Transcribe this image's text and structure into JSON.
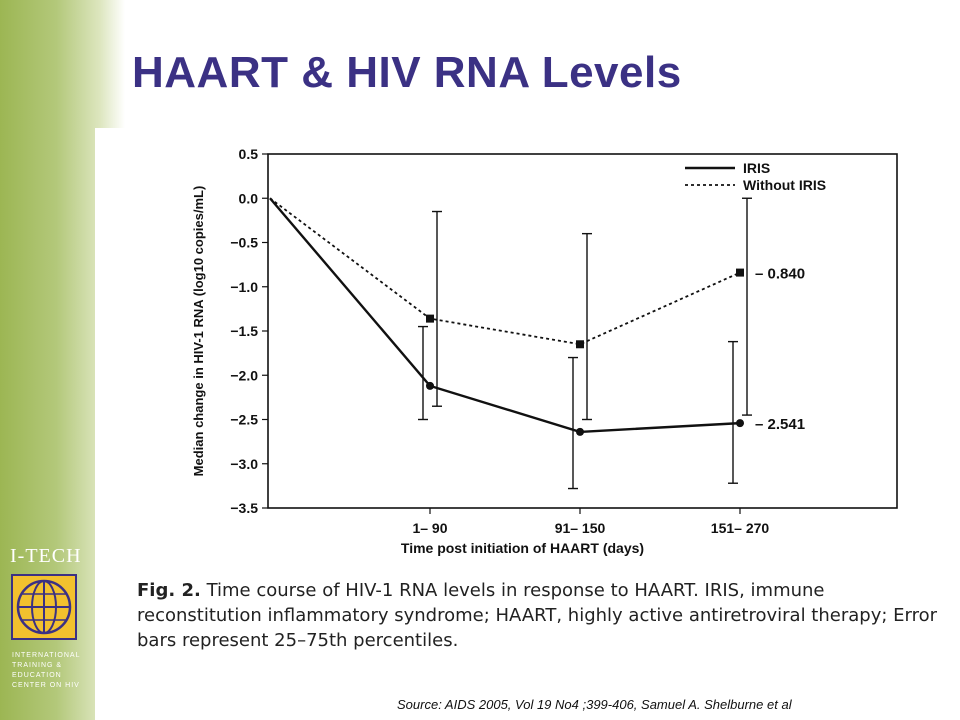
{
  "slide": {
    "title": "HAART & HIV RNA Levels",
    "source": "Source: AIDS 2005, Vol 19 No4 ;399-406, Samuel A. Shelburne et al"
  },
  "figure": {
    "caption_label": "Fig. 2.",
    "caption_text": "Time course of HIV-1 RNA levels in response to HAART. IRIS, immune reconstitution inflammatory syndrome; HAART, highly active antiretroviral therapy; Error bars represent 25–75th percentiles."
  },
  "logo": {
    "name": "I-TECH",
    "lines": [
      "INTERNATIONAL",
      "TRAINING &",
      "EDUCATION",
      "CENTER ON HIV"
    ]
  },
  "colors": {
    "title": "#3b3184",
    "sidebar": "#9cb653",
    "logo_box": "#f2c12e",
    "ink": "#111111"
  },
  "chart_data": {
    "type": "line",
    "xlabel": "Time post initiation of HAART (days)",
    "ylabel": "Median change in HIV-1 RNA (log10 copies/mL)",
    "ylim": [
      -3.5,
      0.5
    ],
    "yticks": [
      0.5,
      0.0,
      -0.5,
      -1.0,
      -1.5,
      -2.0,
      -2.5,
      -3.0,
      -3.5
    ],
    "ytick_labels": [
      "0.5",
      "0.0",
      "−0.5",
      "−1.0",
      "−1.5",
      "−2.0",
      "−2.5",
      "−3.0",
      "−3.5"
    ],
    "categories": [
      "",
      "1– 90",
      "91– 150",
      "151– 270"
    ],
    "legend_position": "top-right",
    "grid": false,
    "series": [
      {
        "name": "IRIS",
        "style": "solid",
        "values": [
          0.0,
          -2.12,
          -2.64,
          -2.541
        ],
        "error_low": [
          null,
          -2.5,
          -3.28,
          -3.22
        ],
        "error_high": [
          null,
          -1.45,
          -1.8,
          -1.62
        ],
        "end_label": "– 2.541"
      },
      {
        "name": "Without IRIS",
        "style": "dotted",
        "values": [
          0.0,
          -1.36,
          -1.65,
          -0.84
        ],
        "error_low": [
          null,
          -2.35,
          -2.5,
          -2.45
        ],
        "error_high": [
          null,
          -0.15,
          -0.4,
          0.0
        ],
        "end_label": "– 0.840"
      }
    ]
  }
}
